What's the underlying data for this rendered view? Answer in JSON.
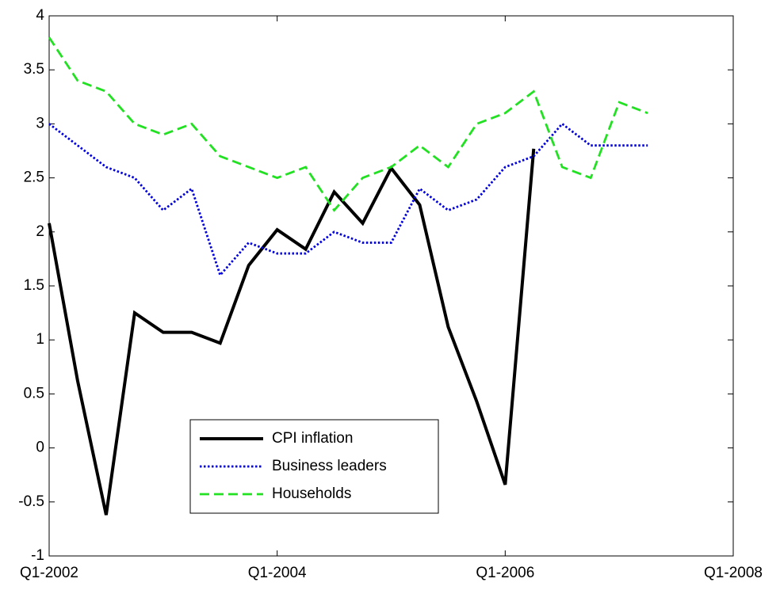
{
  "chart_data": {
    "type": "line",
    "x": [
      2002,
      2002.25,
      2002.5,
      2002.75,
      2003,
      2003.25,
      2003.5,
      2003.75,
      2004,
      2004.25,
      2004.5,
      2004.75,
      2005,
      2005.25,
      2005.5,
      2005.75,
      2006,
      2006.25,
      2006.5,
      2006.75,
      2007,
      2007.25
    ],
    "series": [
      {
        "name": "CPI inflation",
        "color": "#000000",
        "style": "solid",
        "values": [
          2.08,
          0.62,
          -0.62,
          1.25,
          1.07,
          1.07,
          0.97,
          1.69,
          2.02,
          1.84,
          2.37,
          2.08,
          2.59,
          2.25,
          1.12,
          0.43,
          -0.34,
          2.77,
          null,
          null,
          null,
          null
        ]
      },
      {
        "name": "Business leaders",
        "color": "#0000dd",
        "style": "dotted",
        "values": [
          3.0,
          2.8,
          2.6,
          2.5,
          2.2,
          2.4,
          1.6,
          1.9,
          1.8,
          1.8,
          2.0,
          1.9,
          1.9,
          2.4,
          2.2,
          2.3,
          2.6,
          2.7,
          3.0,
          2.8,
          2.8,
          2.8
        ]
      },
      {
        "name": "Households",
        "color": "#22e022",
        "style": "dashed",
        "values": [
          3.8,
          3.4,
          3.3,
          3.0,
          2.9,
          3.0,
          2.7,
          2.6,
          2.5,
          2.6,
          2.2,
          2.5,
          2.6,
          2.8,
          2.6,
          3.0,
          3.1,
          3.3,
          2.6,
          2.5,
          3.2,
          3.1
        ]
      }
    ],
    "xlim": [
      2002,
      2008
    ],
    "xticks": [
      {
        "value": 2002,
        "label": "Q1-2002"
      },
      {
        "value": 2004,
        "label": "Q1-2004"
      },
      {
        "value": 2006,
        "label": "Q1-2006"
      },
      {
        "value": 2008,
        "label": "Q1-2008"
      }
    ],
    "ylim": [
      -1,
      4
    ],
    "yticks": [
      -1,
      -0.5,
      0,
      0.5,
      1,
      1.5,
      2,
      2.5,
      3,
      3.5,
      4
    ],
    "legend": "lower-center"
  }
}
